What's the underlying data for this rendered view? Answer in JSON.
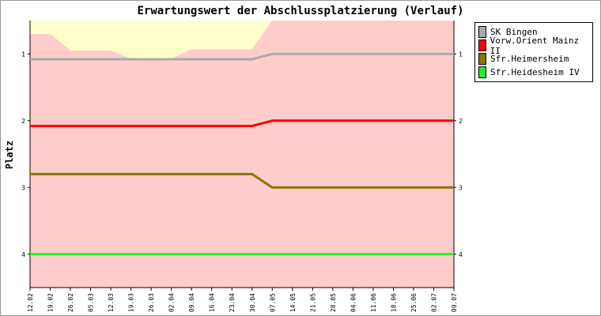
{
  "chart_data": {
    "type": "line",
    "title": "Erwartungswert der Abschlussplatzierung (Verlauf)",
    "xlabel": "",
    "ylabel": "Platz",
    "ylim": [
      0.5,
      4.5
    ],
    "y_inverted": true,
    "y_ticks": [
      "1",
      "2",
      "3",
      "4"
    ],
    "x": [
      "12.02",
      "19.02",
      "26.02",
      "05.03",
      "12.03",
      "19.03",
      "26.03",
      "02.04",
      "09.04",
      "16.04",
      "23.04",
      "30.04",
      "07.05",
      "14.05",
      "21.05",
      "28.05",
      "04.06",
      "11.06",
      "18.06",
      "25.06",
      "02.07",
      "09.07"
    ],
    "legend_position": "right",
    "band_colors": {
      "top": "#ffffcc",
      "bottom": "#ffcccc"
    },
    "band_boundary": [
      0.7,
      0.7,
      0.95,
      0.95,
      0.95,
      1.07,
      1.07,
      1.07,
      0.93,
      0.93,
      0.93,
      0.93,
      0.5,
      0.5,
      0.5,
      0.5,
      0.5,
      0.5,
      0.5,
      0.5,
      0.5,
      0.5
    ],
    "series": [
      {
        "name": "SK Bingen",
        "color": "#aaaaaa",
        "values": [
          1.08,
          1.08,
          1.08,
          1.08,
          1.08,
          1.08,
          1.08,
          1.08,
          1.08,
          1.08,
          1.08,
          1.08,
          1.0,
          1.0,
          1.0,
          1.0,
          1.0,
          1.0,
          1.0,
          1.0,
          1.0,
          1.0
        ]
      },
      {
        "name": "Vorw.Orient Mainz   II",
        "color": "#ff0000",
        "values": [
          2.08,
          2.08,
          2.08,
          2.08,
          2.08,
          2.08,
          2.08,
          2.08,
          2.08,
          2.08,
          2.08,
          2.08,
          2.0,
          2.0,
          2.0,
          2.0,
          2.0,
          2.0,
          2.0,
          2.0,
          2.0,
          2.0
        ]
      },
      {
        "name": "Sfr.Heimersheim",
        "color": "#887700",
        "values": [
          2.8,
          2.8,
          2.8,
          2.8,
          2.8,
          2.8,
          2.8,
          2.8,
          2.8,
          2.8,
          2.8,
          2.8,
          3.0,
          3.0,
          3.0,
          3.0,
          3.0,
          3.0,
          3.0,
          3.0,
          3.0,
          3.0
        ]
      },
      {
        "name": "Sfr.Heidesheim   IV",
        "color": "#22ee22",
        "values": [
          4.0,
          4.0,
          4.0,
          4.0,
          4.0,
          4.0,
          4.0,
          4.0,
          4.0,
          4.0,
          4.0,
          4.0,
          4.0,
          4.0,
          4.0,
          4.0,
          4.0,
          4.0,
          4.0,
          4.0,
          4.0,
          4.0
        ]
      }
    ]
  }
}
